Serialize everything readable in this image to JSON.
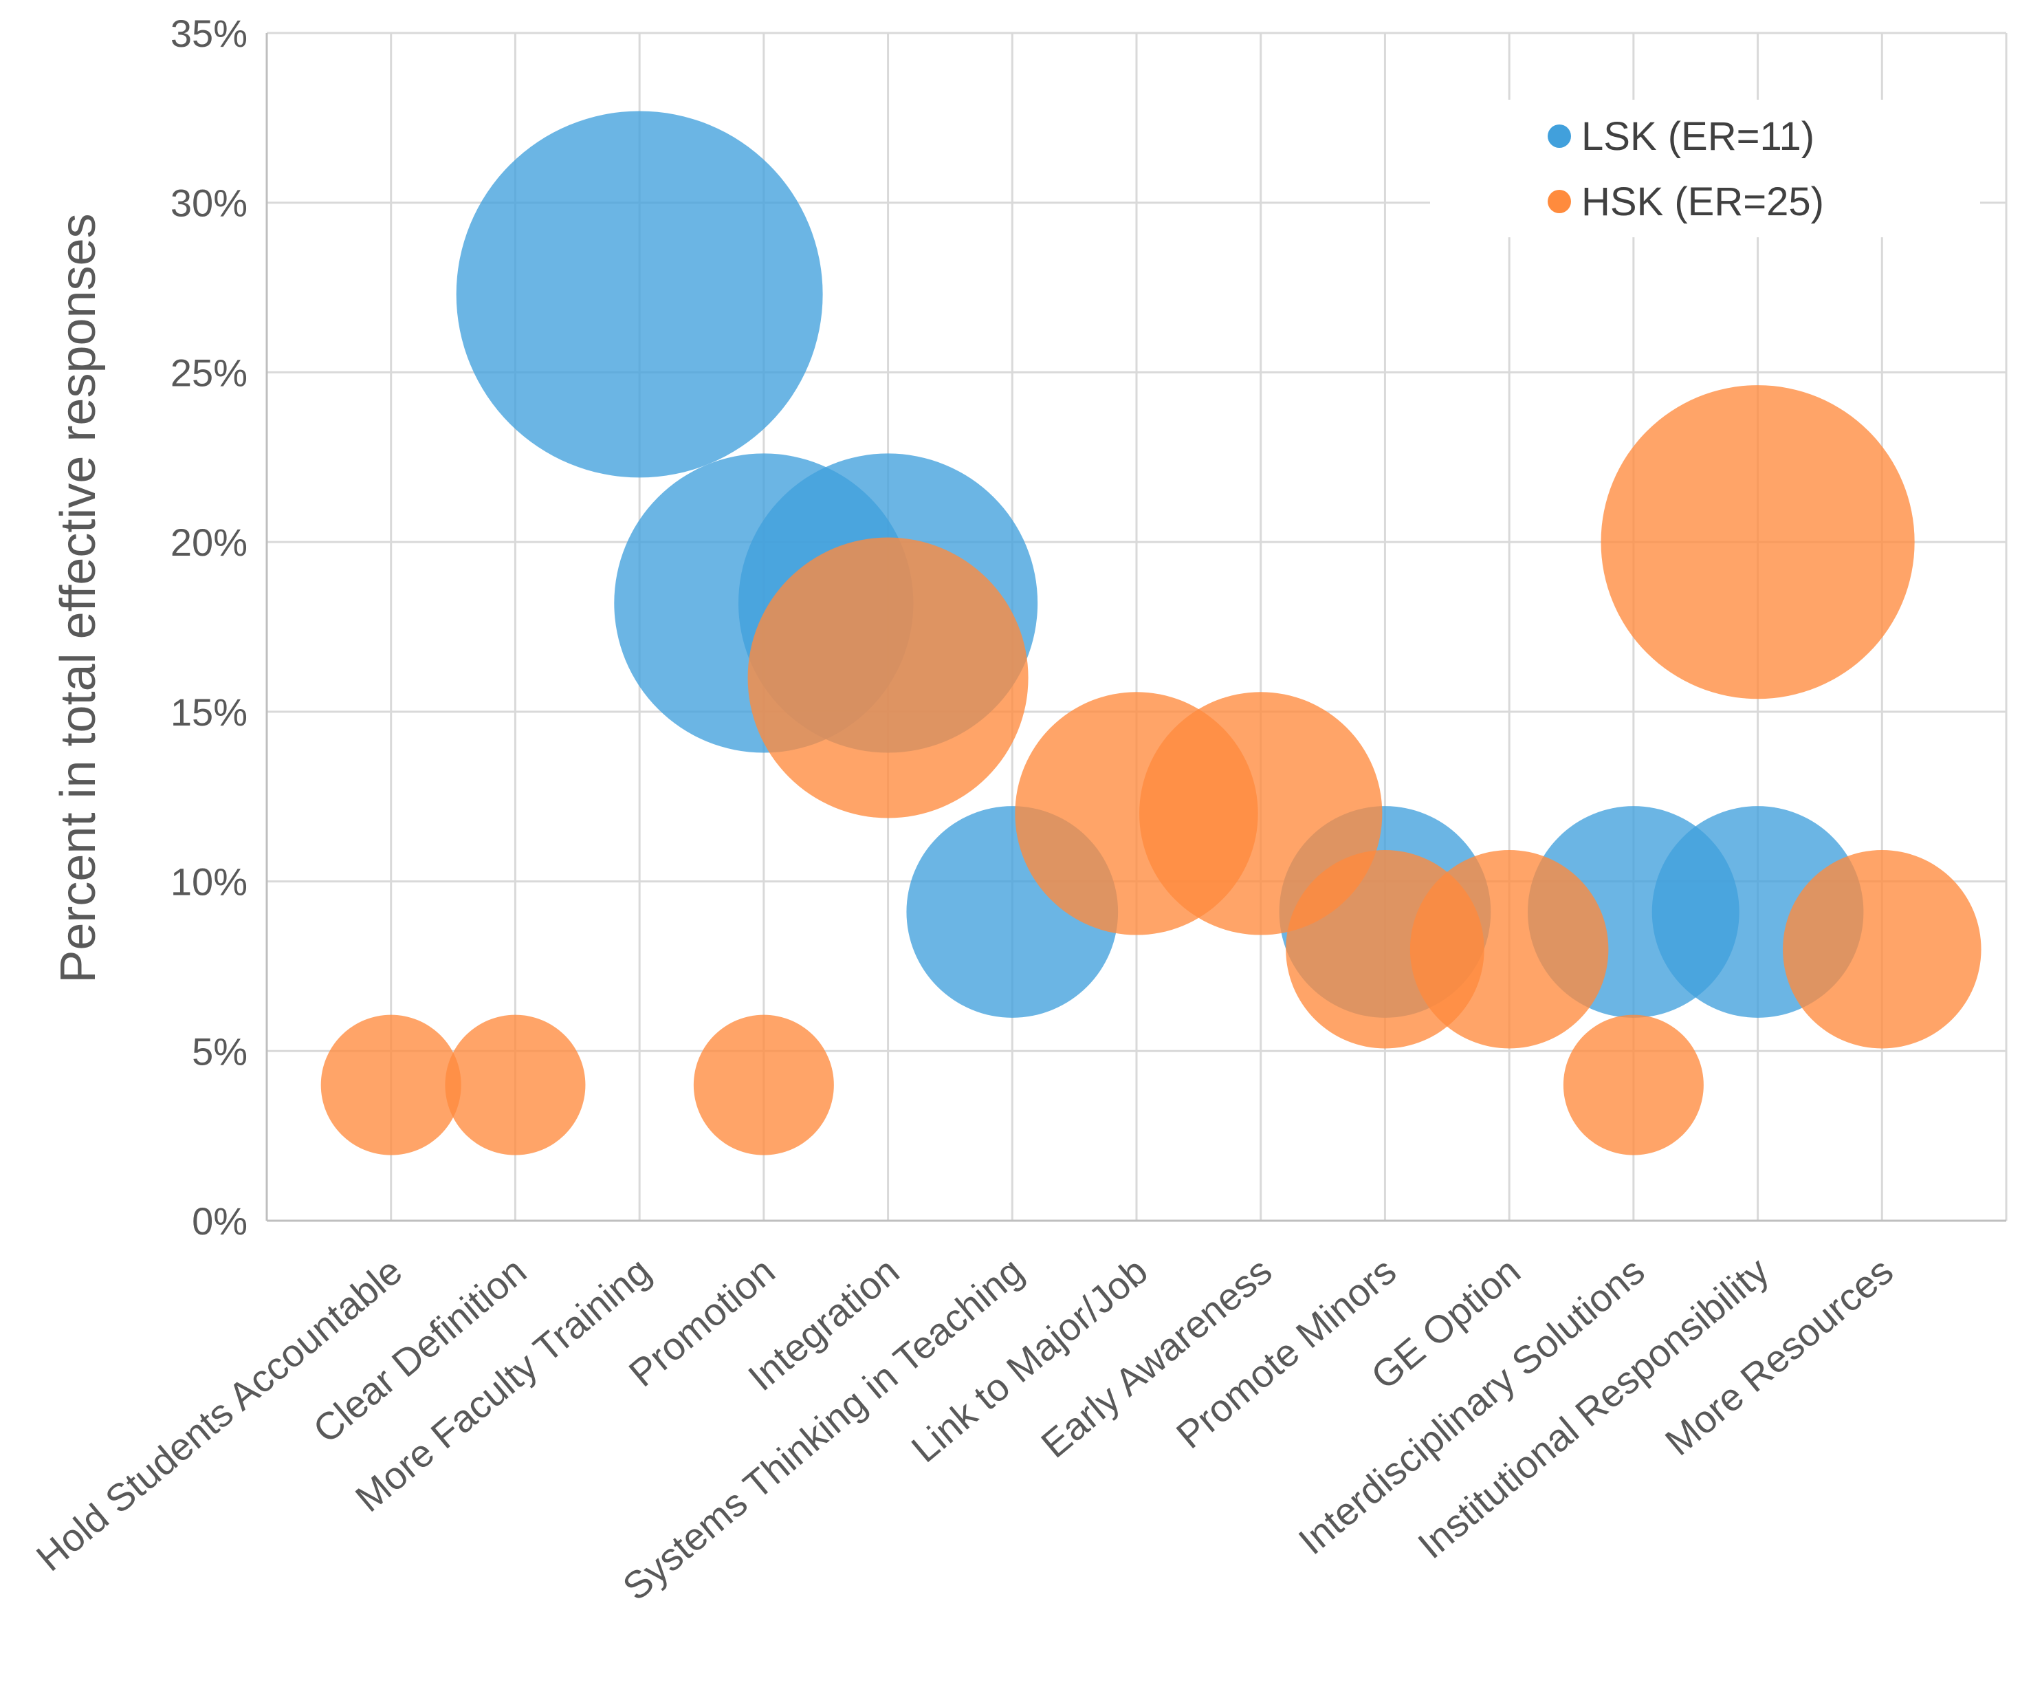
{
  "chart_data": {
    "type": "scatter",
    "title": "",
    "xlabel": "",
    "ylabel": "Percent in total effective responses",
    "ylim": [
      0,
      35
    ],
    "yticks": [
      0,
      5,
      10,
      15,
      20,
      25,
      30,
      35
    ],
    "ytick_format": "%",
    "grid": true,
    "legend_position": "top-right",
    "categories": [
      "Hold Students Accountable",
      "Clear Definition",
      "More Faculty Training",
      "Promotion",
      "Integration",
      "Systems Thinking in Teaching",
      "Link to Major/Job",
      "Early Awareness",
      "Promote Minors",
      "GE Option",
      "Interdisciplinary Solutions",
      "Institutional Responsibility",
      "More Resources"
    ],
    "series": [
      {
        "name": "LSK (ER=11)",
        "color": "#41A0DC",
        "points": [
          {
            "category": "More Faculty Training",
            "value": 27.3
          },
          {
            "category": "Promotion",
            "value": 18.2
          },
          {
            "category": "Integration",
            "value": 18.2
          },
          {
            "category": "Systems Thinking in Teaching",
            "value": 9.1
          },
          {
            "category": "Promote Minors",
            "value": 9.1
          },
          {
            "category": "Interdisciplinary Solutions",
            "value": 9.1
          },
          {
            "category": "Institutional Responsibility",
            "value": 9.1
          }
        ]
      },
      {
        "name": "HSK (ER=25)",
        "color": "#FF8B3D",
        "points": [
          {
            "category": "Hold Students Accountable",
            "value": 4
          },
          {
            "category": "Clear Definition",
            "value": 4
          },
          {
            "category": "Promotion",
            "value": 4
          },
          {
            "category": "Integration",
            "value": 16
          },
          {
            "category": "Link to Major/Job",
            "value": 12
          },
          {
            "category": "Early Awareness",
            "value": 12
          },
          {
            "category": "Promote Minors",
            "value": 8
          },
          {
            "category": "GE Option",
            "value": 8
          },
          {
            "category": "Interdisciplinary Solutions",
            "value": 4
          },
          {
            "category": "Institutional Responsibility",
            "value": 20
          },
          {
            "category": "More Resources",
            "value": 8
          }
        ]
      }
    ]
  }
}
